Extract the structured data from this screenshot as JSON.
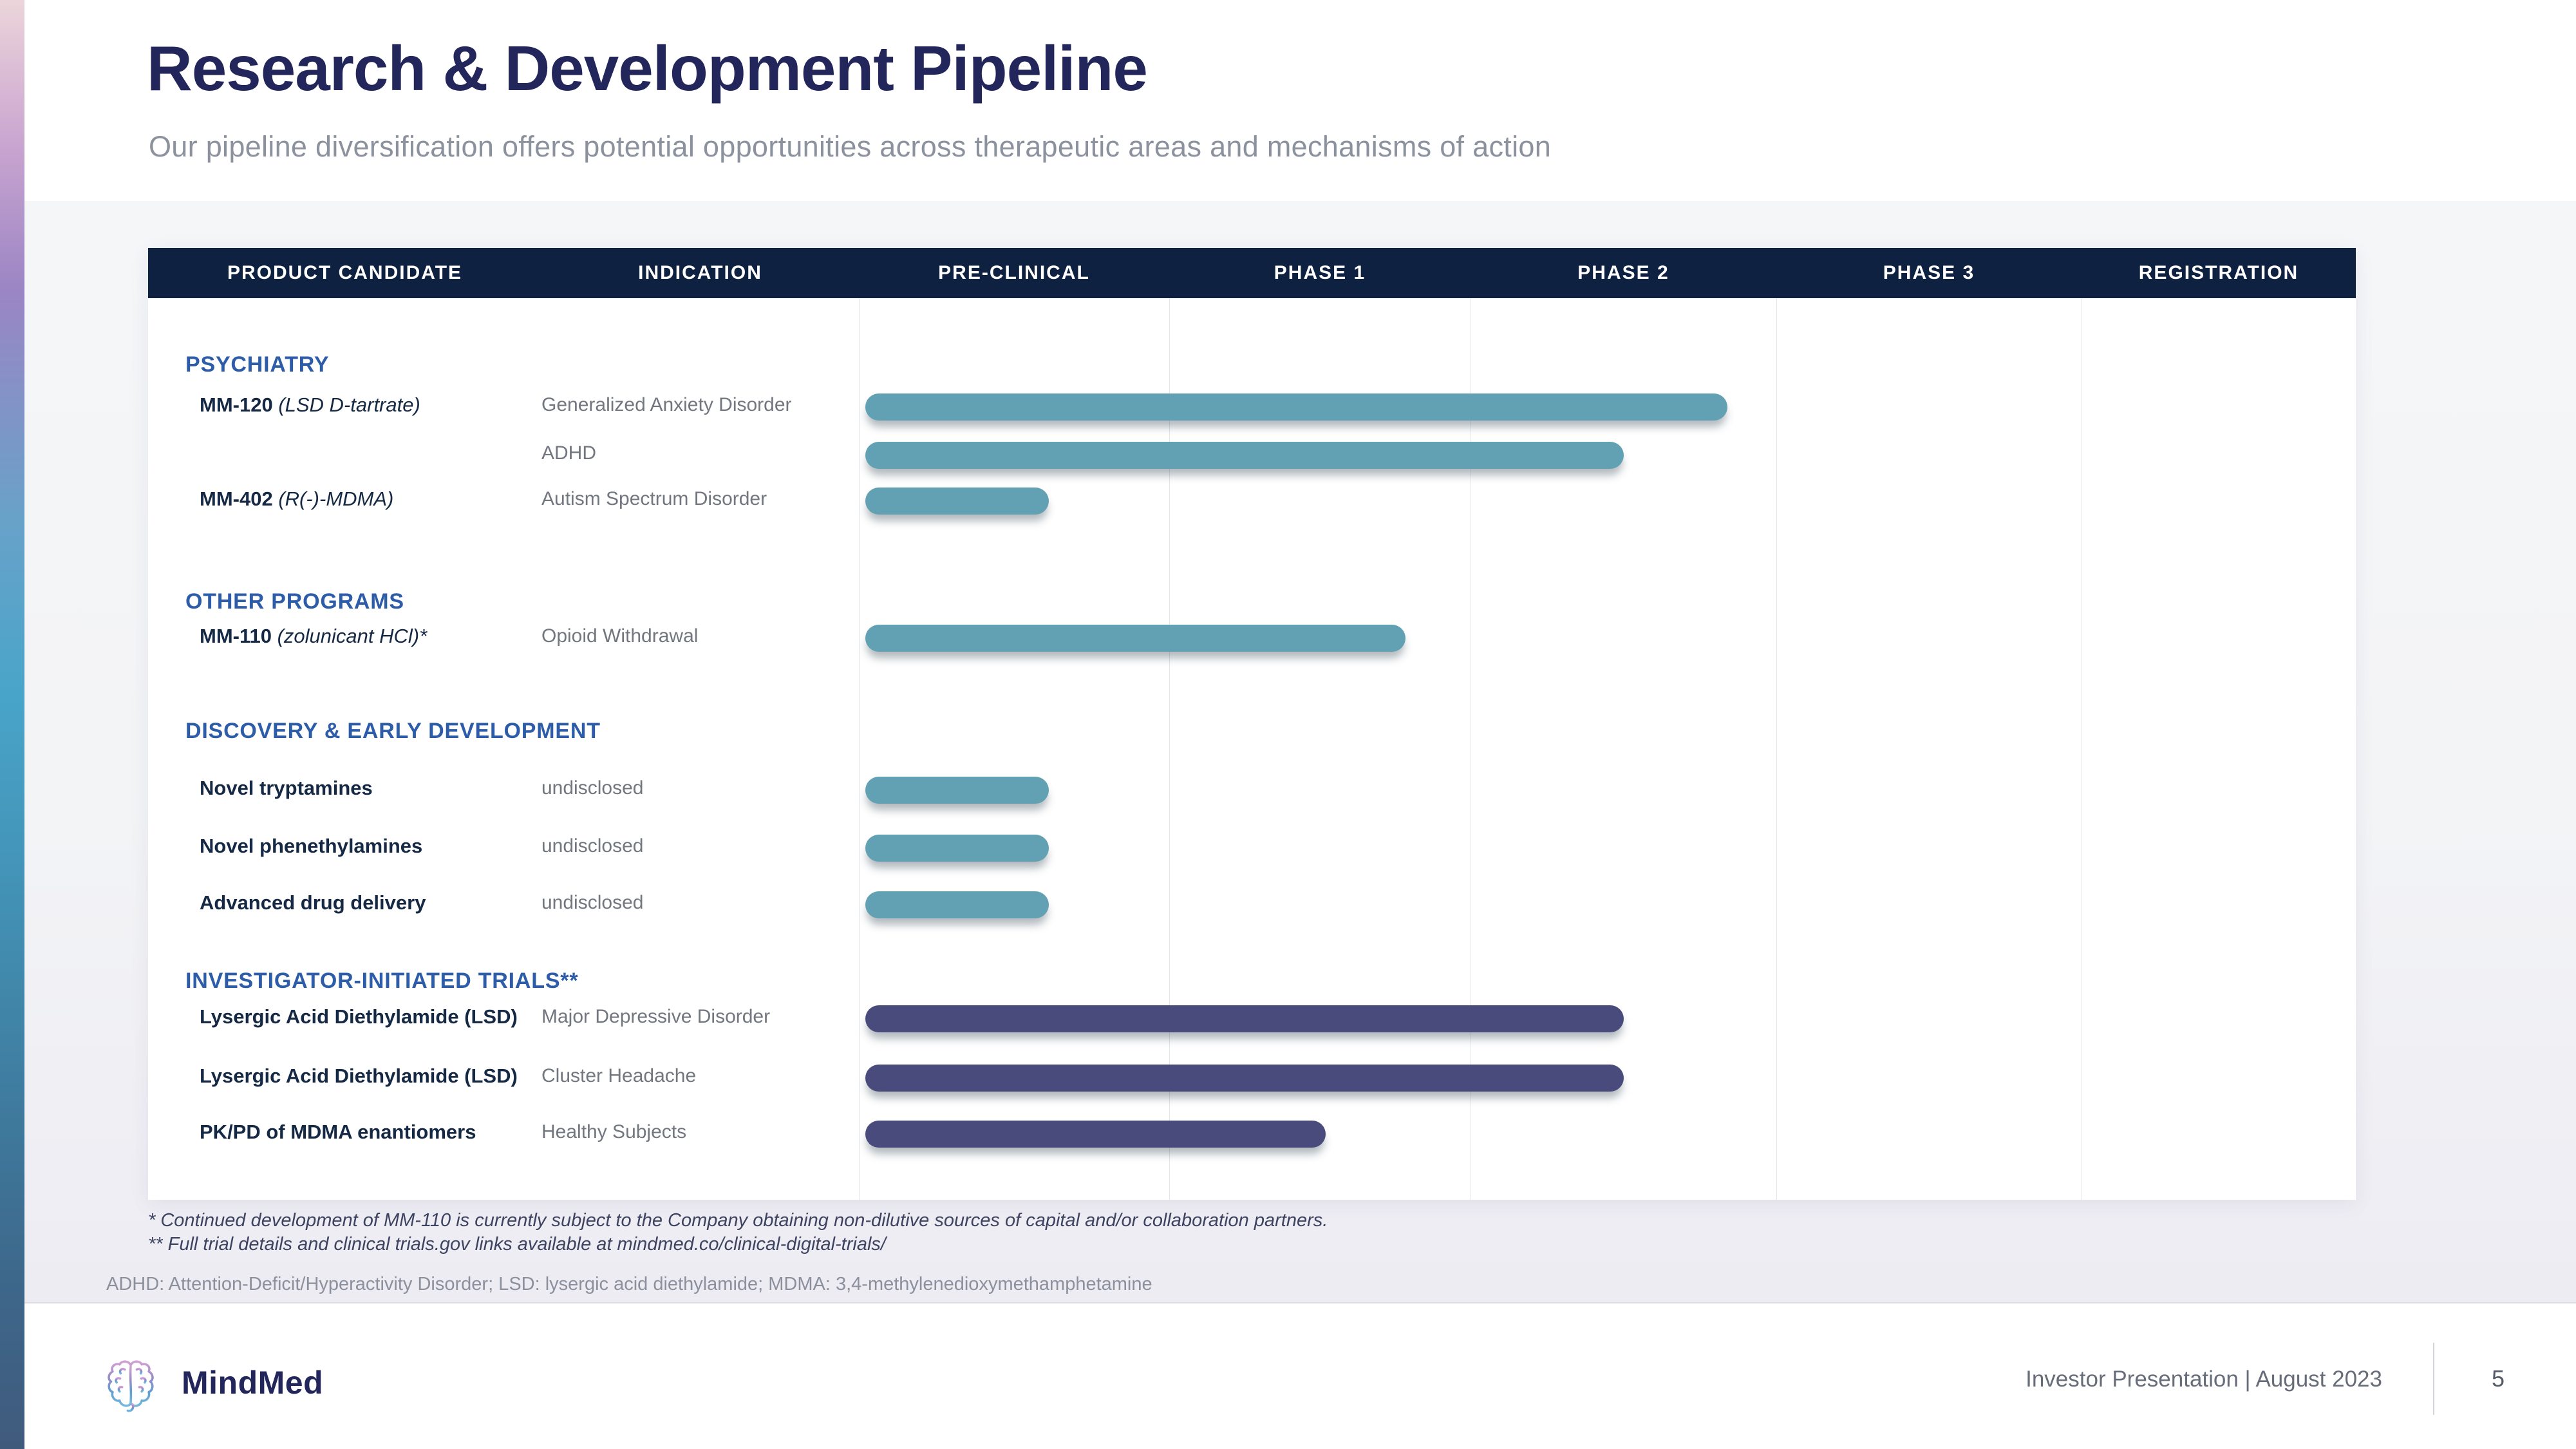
{
  "slide": {
    "title": "Research & Development Pipeline",
    "subtitle": "Our pipeline diversification offers potential opportunities across therapeutic areas and mechanisms of action",
    "footer": {
      "brand": "MindMed",
      "caption": "Investor Presentation | August 2023",
      "page_number": "5"
    }
  },
  "colors": {
    "teal_bar": "#61a1b3",
    "purple_bar": "#4a4b7d",
    "header_navy": "#0e2141",
    "section_blue": "#2d5ca9",
    "title_navy": "#23265a"
  },
  "pipeline_table": {
    "columns": [
      "PRODUCT CANDIDATE",
      "INDICATION",
      "PRE-CLINICAL",
      "PHASE 1",
      "PHASE 2",
      "PHASE 3",
      "REGISTRATION"
    ],
    "sections": [
      {
        "name": "PSYCHIATRY",
        "rows": [
          {
            "candidate": "MM-120",
            "candidate_detail": "(LSD D-tartrate)",
            "indication": "Generalized Anxiety Disorder",
            "bar_color": "teal",
            "end_pct": 58.0
          },
          {
            "candidate": "",
            "candidate_detail": "",
            "indication": "ADHD",
            "bar_color": "teal",
            "end_pct": 51.1
          },
          {
            "candidate": "MM-402",
            "candidate_detail": "(R(-)-MDMA)",
            "indication": "Autism Spectrum Disorder",
            "bar_color": "teal",
            "end_pct": 12.7
          }
        ]
      },
      {
        "name": "OTHER PROGRAMS",
        "rows": [
          {
            "candidate": "MM-110",
            "candidate_detail": "(zolunicant HCl)*",
            "indication": "Opioid Withdrawal",
            "bar_color": "teal",
            "end_pct": 36.5
          }
        ]
      },
      {
        "name": "DISCOVERY & EARLY DEVELOPMENT",
        "rows": [
          {
            "candidate": "Novel tryptamines",
            "candidate_detail": "",
            "indication": "undisclosed",
            "bar_color": "teal",
            "end_pct": 12.7
          },
          {
            "candidate": "Novel phenethylamines",
            "candidate_detail": "",
            "indication": "undisclosed",
            "bar_color": "teal",
            "end_pct": 12.7
          },
          {
            "candidate": "Advanced drug delivery",
            "candidate_detail": "",
            "indication": "undisclosed",
            "bar_color": "teal",
            "end_pct": 12.7
          }
        ]
      },
      {
        "name": "INVESTIGATOR-INITIATED TRIALS**",
        "rows": [
          {
            "candidate": "Lysergic Acid Diethylamide (LSD)",
            "candidate_detail": "",
            "indication": "Major Depressive Disorder",
            "bar_color": "purple",
            "end_pct": 51.1
          },
          {
            "candidate": "Lysergic Acid Diethylamide (LSD)",
            "candidate_detail": "",
            "indication": "Cluster Headache",
            "bar_color": "purple",
            "end_pct": 51.1
          },
          {
            "candidate": "PK/PD of MDMA enantiomers",
            "candidate_detail": "",
            "indication": "Healthy Subjects",
            "bar_color": "purple",
            "end_pct": 31.2
          }
        ]
      }
    ],
    "footnotes": [
      "* Continued development of MM-110 is currently subject to the Company obtaining non-dilutive sources of capital and/or collaboration partners.",
      "** Full trial details and clinical trials.gov links available at mindmed.co/clinical-digital-trials/"
    ],
    "abbreviations": "ADHD: Attention-Deficit/Hyperactivity Disorder; LSD: lysergic acid diethylamide; MDMA: 3,4-methylenedioxymethamphetamine"
  },
  "chart_data": {
    "type": "bar",
    "title": "Research & Development Pipeline",
    "stages": [
      "Pre-Clinical",
      "Phase 1",
      "Phase 2",
      "Phase 3",
      "Registration"
    ],
    "unit": "development stage progress (0 = start of Pre-Clinical, 5 = end of Registration)",
    "x_axis_range": [
      0,
      5
    ],
    "grid": "vertical lines at stage boundaries",
    "series": [
      {
        "group": "Psychiatry",
        "name": "MM-120 (LSD D-tartrate)",
        "indication": "Generalized Anxiety Disorder",
        "value": 2.9,
        "color": "#61a1b3"
      },
      {
        "group": "Psychiatry",
        "name": "MM-120 (LSD D-tartrate)",
        "indication": "ADHD",
        "value": 2.56,
        "color": "#61a1b3"
      },
      {
        "group": "Psychiatry",
        "name": "MM-402 (R(-)-MDMA)",
        "indication": "Autism Spectrum Disorder",
        "value": 0.64,
        "color": "#61a1b3"
      },
      {
        "group": "Other Programs",
        "name": "MM-110 (zolunicant HCl)*",
        "indication": "Opioid Withdrawal",
        "value": 1.83,
        "color": "#61a1b3"
      },
      {
        "group": "Discovery & Early Development",
        "name": "Novel tryptamines",
        "indication": "undisclosed",
        "value": 0.64,
        "color": "#61a1b3"
      },
      {
        "group": "Discovery & Early Development",
        "name": "Novel phenethylamines",
        "indication": "undisclosed",
        "value": 0.64,
        "color": "#61a1b3"
      },
      {
        "group": "Discovery & Early Development",
        "name": "Advanced drug delivery",
        "indication": "undisclosed",
        "value": 0.64,
        "color": "#61a1b3"
      },
      {
        "group": "Investigator-Initiated Trials**",
        "name": "Lysergic Acid Diethylamide (LSD)",
        "indication": "Major Depressive Disorder",
        "value": 2.56,
        "color": "#4a4b7d"
      },
      {
        "group": "Investigator-Initiated Trials**",
        "name": "Lysergic Acid Diethylamide (LSD)",
        "indication": "Cluster Headache",
        "value": 2.56,
        "color": "#4a4b7d"
      },
      {
        "group": "Investigator-Initiated Trials**",
        "name": "PK/PD of MDMA enantiomers",
        "indication": "Healthy Subjects",
        "value": 1.56,
        "color": "#4a4b7d"
      }
    ]
  }
}
